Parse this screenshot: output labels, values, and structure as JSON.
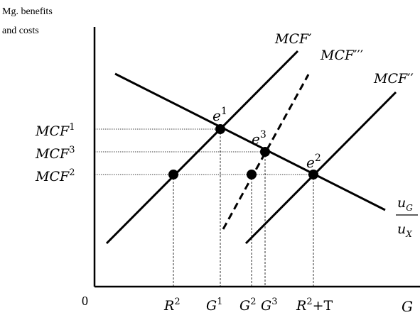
{
  "y_axis": {
    "label_line1": "Mg. benefits",
    "label_line2": "and costs"
  },
  "x_axis": {
    "origin": "0",
    "label": "G"
  },
  "curves": {
    "mcf_1": {
      "base": "MCF",
      "mark": "′"
    },
    "mcf_3": {
      "base": "MCF",
      "mark": "′′′"
    },
    "mcf_2": {
      "base": "MCF",
      "mark": "′′"
    },
    "benefit": {
      "numerator": "u",
      "numerator_sub": "G",
      "denominator": "u",
      "denominator_sub": "X"
    }
  },
  "equilibria": {
    "e1": {
      "base": "e",
      "sup": "1"
    },
    "e3": {
      "base": "e",
      "sup": "3"
    },
    "e2": {
      "base": "e",
      "sup": "2"
    }
  },
  "y_ticks": {
    "mcf1": {
      "base": "MCF",
      "sup": "1"
    },
    "mcf3": {
      "base": "MCF",
      "sup": "3"
    },
    "mcf2": {
      "base": "MCF",
      "sup": "2"
    }
  },
  "x_ticks": {
    "r2": {
      "base": "R",
      "sup": "2"
    },
    "g1": {
      "base": "G",
      "sup": "1"
    },
    "g2": {
      "base": "G",
      "sup": "2"
    },
    "g3": {
      "base": "G",
      "sup": "3"
    },
    "r2t": {
      "base": "R",
      "sup": "2",
      "rest": "+T"
    }
  },
  "colors": {
    "line": "#000000",
    "guide": "#000000",
    "background": "#ffffff"
  }
}
